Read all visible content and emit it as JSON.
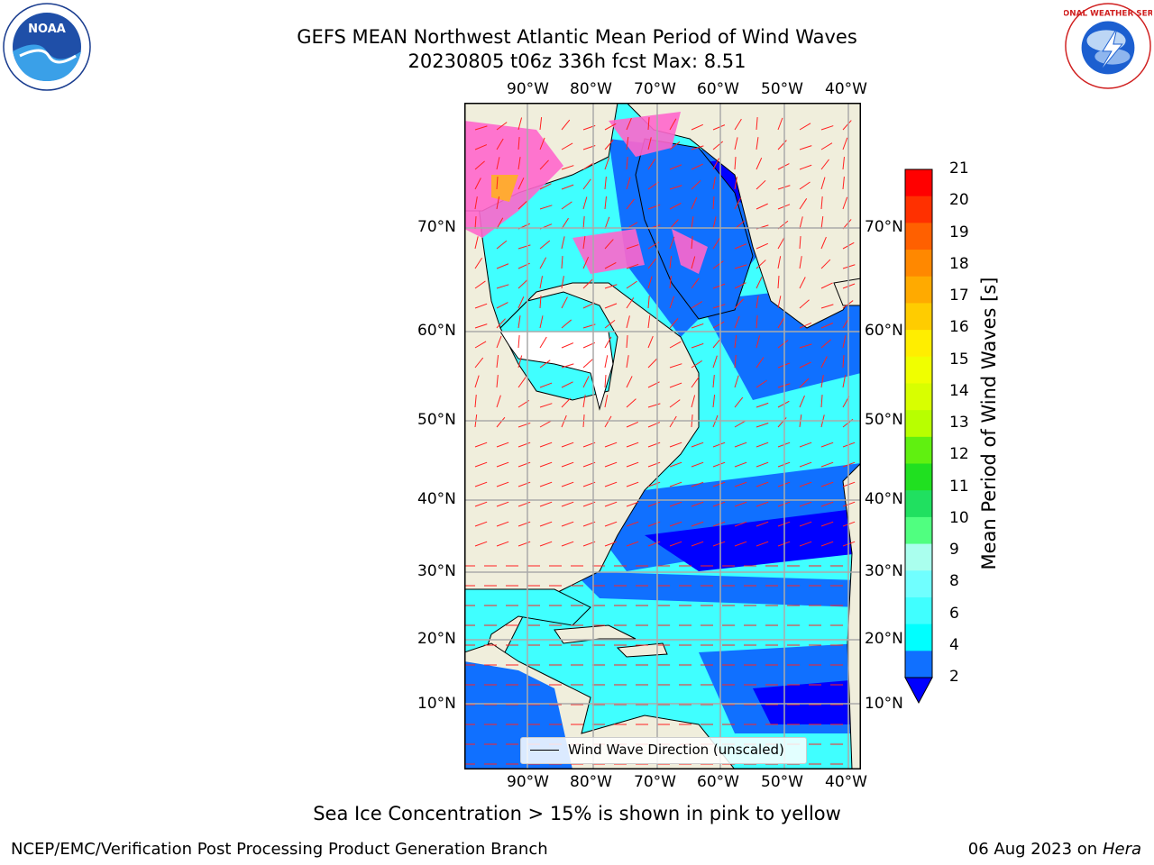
{
  "title": "GEFS MEAN Northwest Atlantic Mean Period of Wind Waves",
  "subtitle": "20230805 t06z 336h fcst   Max: 8.51",
  "map": {
    "lon_labels": [
      "90°W",
      "80°W",
      "70°W",
      "60°W",
      "50°W",
      "40°W"
    ],
    "lat_labels": [
      "70°N",
      "60°N",
      "50°N",
      "40°N",
      "30°N",
      "20°N",
      "10°N"
    ],
    "land_color": "#f0eedc",
    "lakes_color": "#ffffff"
  },
  "legend": {
    "label": "Wind Wave Direction (unscaled)"
  },
  "colorbar": {
    "label": "Mean Period of Wind Waves [s]",
    "ticks": [
      "21",
      "20",
      "19",
      "18",
      "17",
      "16",
      "15",
      "14",
      "13",
      "12",
      "11",
      "10",
      "9",
      "8",
      "6",
      "4",
      "2"
    ],
    "colors": [
      "#ff0000",
      "#ff3000",
      "#ff6000",
      "#ff8800",
      "#ffaa00",
      "#ffcc00",
      "#ffee00",
      "#f0ff00",
      "#d8ff00",
      "#b8ff00",
      "#60f010",
      "#20e020",
      "#20e060",
      "#50ff80",
      "#aaffee",
      "#70ffff",
      "#40ffff",
      "#00ffff",
      "#1070ff",
      "#0000ff"
    ]
  },
  "note": "Sea Ice Concentration > 15% is shown in pink to yellow",
  "footer": {
    "left": "NCEP/EMC/Verification Post Processing Product Generation Branch",
    "date": "06 Aug 2023 on",
    "machine": "Hera"
  },
  "logos": {
    "left": "NOAA",
    "right": "NATIONAL WEATHER SERVICE"
  }
}
